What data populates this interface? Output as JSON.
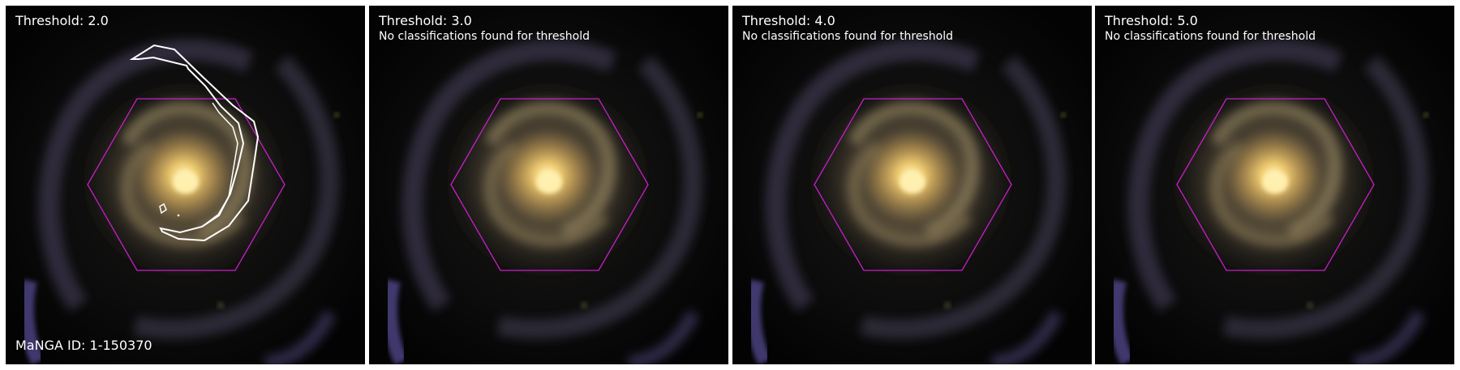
{
  "panels": [
    {
      "title": "Threshold: 2.0",
      "note": "",
      "has_contours": true
    },
    {
      "title": "Threshold: 3.0",
      "note": "No classifications found for threshold",
      "has_contours": false
    },
    {
      "title": "Threshold: 4.0",
      "note": "No classifications found for threshold",
      "has_contours": false
    },
    {
      "title": "Threshold: 5.0",
      "note": "No classifications found for threshold",
      "has_contours": false
    }
  ],
  "manga_id": "MaNGA ID: 1-150370",
  "colors": {
    "hexagon": "#c81ec8",
    "contour": "#ffffff",
    "galaxy_core": "#fff3b0",
    "galaxy_bulge": "#e8c070",
    "arms": "#8a7a60",
    "background": "#050505"
  }
}
